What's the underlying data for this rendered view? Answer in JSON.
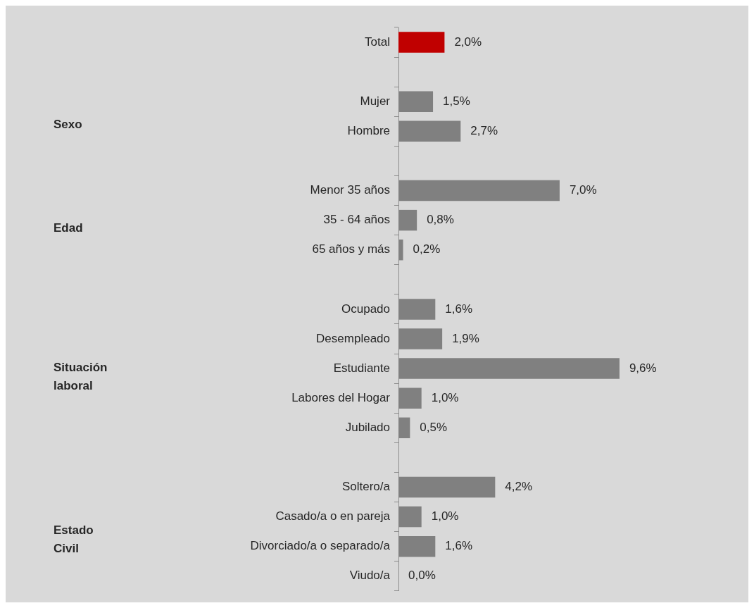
{
  "chart_data": {
    "type": "bar",
    "orientation": "horizontal",
    "categories": [
      "Total",
      null,
      "Mujer",
      "Hombre",
      null,
      "Menor 35 años",
      "35 - 64 años",
      "65 años y más",
      null,
      "Ocupado",
      "Desempleado",
      "Estudiante",
      "Labores del Hogar",
      "Jubilado",
      null,
      "Soltero/a",
      "Casado/a o en pareja",
      "Divorciado/a o separado/a",
      "Viudo/a"
    ],
    "values": [
      2.0,
      null,
      1.5,
      2.7,
      null,
      7.0,
      0.8,
      0.2,
      null,
      1.6,
      1.9,
      9.6,
      1.0,
      0.5,
      null,
      4.2,
      1.0,
      1.6,
      0.0
    ],
    "colors": [
      "#c00000",
      null,
      "#808080",
      "#808080",
      null,
      "#808080",
      "#808080",
      "#808080",
      null,
      "#808080",
      "#808080",
      "#808080",
      "#808080",
      "#808080",
      null,
      "#808080",
      "#808080",
      "#808080",
      "#808080"
    ],
    "value_labels": [
      "2,0%",
      null,
      "1,5%",
      "2,7%",
      null,
      "7,0%",
      "0,8%",
      "0,2%",
      null,
      "1,6%",
      "1,9%",
      "9,6%",
      "1,0%",
      "0,5%",
      null,
      "4,2%",
      "1,0%",
      "1,6%",
      "0,0%"
    ],
    "annotations": [
      "Sexo",
      "Edad",
      "Situación laboral",
      "Estado Civil"
    ],
    "grid": false,
    "legend": false
  }
}
